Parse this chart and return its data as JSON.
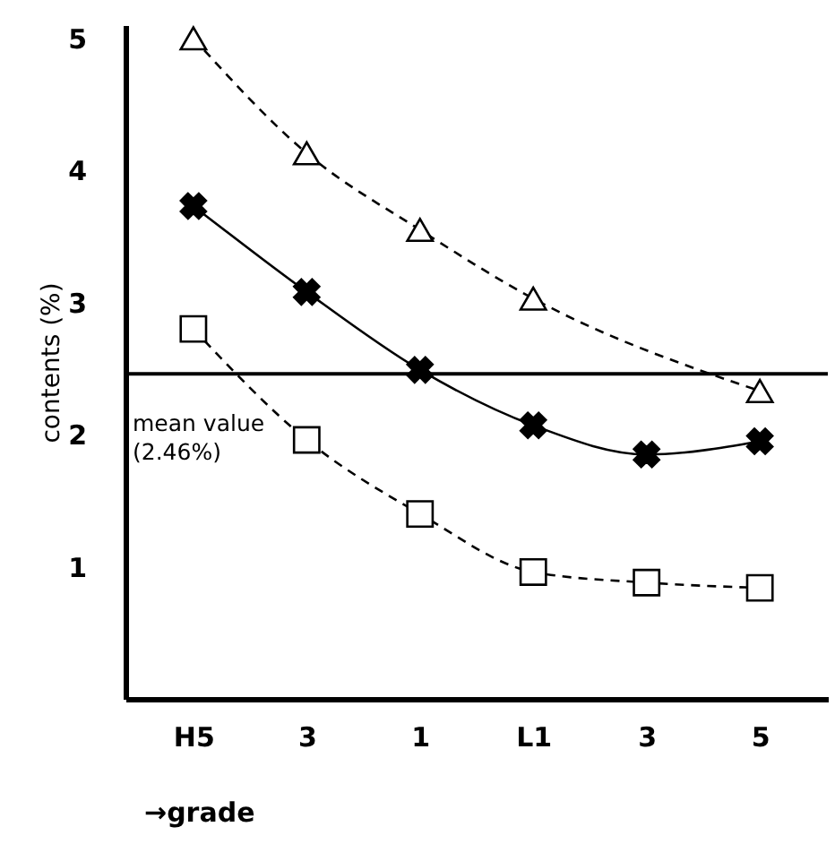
{
  "chart_data": {
    "type": "line",
    "xlabel": "→grade",
    "ylabel": "contents (%)",
    "categories": [
      "H5",
      "3",
      "1",
      "L1",
      "3",
      "5"
    ],
    "ylim": [
      0,
      5.1
    ],
    "yticks": [
      1,
      2,
      3,
      4,
      5
    ],
    "grid": false,
    "series": [
      {
        "color": "#000000",
        "marker": "triangle",
        "line_style": "dashed",
        "values": [
          5.0,
          4.13,
          3.55,
          3.03,
          null,
          2.33
        ]
      },
      {
        "color": "#000000",
        "marker": "cross",
        "line_style": "solid",
        "values": [
          3.73,
          3.08,
          2.49,
          2.07,
          1.85,
          1.95
        ]
      },
      {
        "color": "#000000",
        "marker": "square",
        "line_style": "dashed",
        "values": [
          2.8,
          1.96,
          1.4,
          0.96,
          0.88,
          0.84
        ]
      }
    ],
    "ref_lines": [
      {
        "axis": "y",
        "value": 2.46,
        "label": "mean value (2.46%)",
        "color": "#000000",
        "line_style": "solid"
      }
    ]
  }
}
